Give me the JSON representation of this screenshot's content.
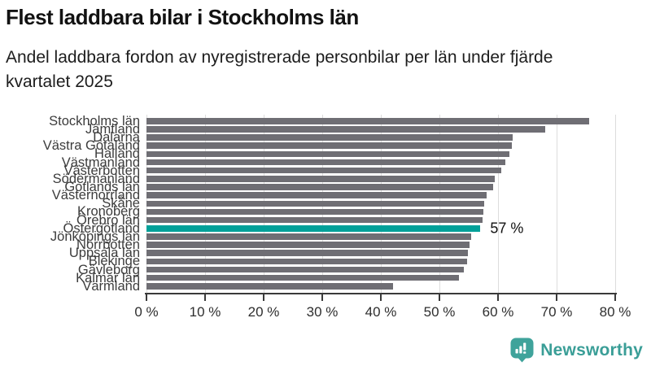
{
  "header": {
    "title": "Flest laddbara bilar i Stockholms län",
    "subtitle": "Andel laddbara fordon av nyregistrerade personbilar per län under fjärde kvartalet 2025",
    "subtitle_lines": [
      "Andel laddbara fordon av nyregistrerade personbilar per län under fjärde",
      "kvartalet 2025"
    ]
  },
  "chart_data": {
    "type": "bar",
    "orientation": "horizontal",
    "categories": [
      "Stockholms län",
      "Jämtland",
      "Dalarna",
      "Västra Götaland",
      "Halland",
      "Västmanland",
      "Västerbotten",
      "Södermanland",
      "Gotlands län",
      "Västernorrland",
      "Skåne",
      "Kronoberg",
      "Örebro län",
      "Östergötland",
      "Jönköpings län",
      "Norrbotten",
      "Uppsala län",
      "Blekinge",
      "Gävleborg",
      "Kalmar län",
      "Värmland"
    ],
    "values": [
      75.5,
      68.0,
      62.5,
      62.4,
      62.0,
      61.3,
      60.6,
      59.5,
      59.2,
      58.0,
      57.6,
      57.5,
      57.4,
      57.0,
      55.4,
      55.2,
      54.8,
      54.7,
      54.2,
      53.3,
      42.1
    ],
    "unit": "%",
    "highlight": {
      "category": "Östergötland",
      "index": 13,
      "value_label": "57 %",
      "color": "#00A099"
    },
    "bar_color": "#6F6E74",
    "grid_color": "#dcdcdc",
    "axis_color": "#3a3a3a",
    "x_ticks": [
      "0 %",
      "10 %",
      "20 %",
      "30 %",
      "40 %",
      "50 %",
      "60 %",
      "70 %",
      "80 %"
    ],
    "xlim": [
      0,
      80
    ],
    "grid": true,
    "legend": "none"
  },
  "branding": {
    "name": "Newsworthy",
    "color": "#3A9E97",
    "icon": "newsworthy-logo-icon"
  }
}
